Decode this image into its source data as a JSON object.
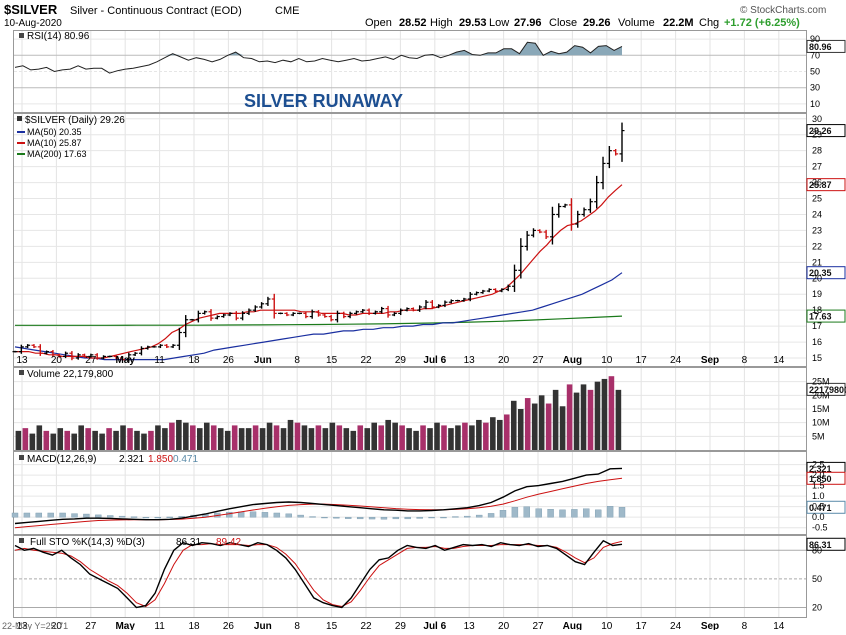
{
  "header": {
    "symbol": "$SILVER",
    "name": "Silver - Continuous Contract (EOD)",
    "exchange": "CME",
    "date": "10-Aug-2020",
    "brand": "© StockCharts.com",
    "quote": {
      "open_label": "Open",
      "open": "28.52",
      "high_label": "High",
      "high": "29.53",
      "low_label": "Low",
      "low": "27.96",
      "close_label": "Close",
      "close": "29.26",
      "volume_label": "Volume",
      "volume": "22.2M",
      "chg_label": "Chg",
      "chg": "+1.72 (+6.25%)",
      "up_color": "#2e9e2e"
    }
  },
  "colors": {
    "candle_up": "#000000",
    "candle_down": "#cc1111",
    "ma50": "#1a2fa0",
    "ma10": "#cc1111",
    "ma200": "#1b7a1b",
    "volume_up": "#333333",
    "volume_down": "#a8306a",
    "macd_line": "#000000",
    "macd_signal": "#cc1111",
    "macd_hist": "#9fb9c9",
    "rsi_fill": "#8aa8b8",
    "sto_k": "#000000",
    "sto_d": "#cc1111",
    "annotation": "#1d4f91"
  },
  "annotation": "SILVER RUNAWAY",
  "chart_data": [
    {
      "type": "line",
      "panel": "rsi",
      "legend": "RSI(14) 80.96",
      "last_value_label": "80.96",
      "y_ticks": [
        90,
        70,
        50,
        30,
        10
      ],
      "ylim": [
        0,
        100
      ],
      "series": [
        {
          "values": [
            55,
            57,
            52,
            53,
            55,
            50,
            52,
            53,
            57,
            53,
            54,
            54,
            48,
            51,
            53,
            54,
            56,
            58,
            62,
            67,
            72,
            68,
            64,
            67,
            65,
            62,
            65,
            70,
            74,
            67,
            66,
            62,
            63,
            61,
            64,
            62,
            66,
            62,
            63,
            66,
            64,
            62,
            64,
            66,
            63,
            64,
            66,
            68,
            65,
            70,
            67,
            66,
            70,
            71,
            67,
            70,
            74,
            76,
            71,
            70,
            73,
            73,
            78,
            78,
            72,
            86,
            85,
            70,
            75,
            72,
            74,
            82,
            80,
            73,
            81,
            82,
            76,
            81
          ]
        }
      ]
    },
    {
      "type": "candlestick",
      "panel": "price",
      "legend": {
        "symbol": "$SILVER (Daily) 29.26",
        "ma50": "MA(50) 20.35",
        "ma10": "MA(10) 25.87",
        "ma200": "MA(200) 17.63"
      },
      "y_ticks": [
        30,
        29,
        28,
        27,
        26,
        25,
        24,
        23,
        22,
        21,
        20,
        19,
        18,
        17,
        16,
        15
      ],
      "ylim": [
        14.5,
        30.3
      ],
      "last_labels": {
        "close": "29.26",
        "ma10": "25.87",
        "ma50": "20.35",
        "ma200": "17.63"
      },
      "x_tick_labels": [
        "13",
        "20",
        "27",
        "May",
        "11",
        "18",
        "26",
        "Jun",
        "8",
        "15",
        "22",
        "29",
        "Jul 6",
        "13",
        "20",
        "27",
        "Aug",
        "10",
        "17",
        "24",
        "Sep",
        "8",
        "14"
      ],
      "close": [
        15.4,
        15.7,
        15.8,
        15.7,
        15.3,
        15.4,
        15.2,
        15.1,
        15.3,
        15.0,
        15.2,
        15.1,
        15.2,
        15.0,
        15.1,
        15.1,
        15.0,
        14.9,
        15.2,
        15.3,
        15.6,
        15.7,
        15.7,
        15.8,
        15.7,
        15.8,
        16.6,
        17.4,
        17.4,
        17.8,
        17.9,
        17.5,
        17.6,
        17.7,
        17.8,
        17.5,
        17.8,
        18.0,
        18.2,
        18.4,
        18.7,
        17.8,
        17.8,
        17.7,
        17.8,
        17.8,
        17.6,
        17.9,
        17.7,
        17.6,
        17.4,
        17.8,
        17.6,
        17.8,
        17.9,
        18.0,
        17.8,
        17.9,
        18.1,
        17.7,
        17.8,
        18.0,
        18.1,
        18.0,
        18.2,
        18.5,
        18.2,
        18.3,
        18.5,
        18.6,
        18.6,
        18.7,
        19.0,
        19.1,
        19.2,
        19.3,
        19.2,
        19.3,
        19.5,
        20.5,
        22.0,
        22.7,
        23.0,
        22.9,
        22.6,
        24.0,
        24.5,
        24.6,
        23.4,
        24.0,
        24.3,
        24.8,
        26.0,
        27.2,
        28.0,
        27.8,
        29.26
      ],
      "ma10": [
        15.4,
        15.4,
        15.4,
        15.3,
        15.3,
        15.2,
        15.2,
        15.1,
        15.1,
        15.1,
        15.1,
        15.0,
        15.0,
        15.0,
        15.1,
        15.2,
        15.3,
        15.4,
        15.5,
        15.6,
        15.7,
        15.9,
        16.2,
        16.6,
        16.8,
        17.1,
        17.3,
        17.5,
        17.6,
        17.7,
        17.8,
        17.8,
        17.8,
        17.8,
        17.9,
        17.9,
        18.0,
        18.0,
        18.0,
        18.0,
        18.0,
        18.0,
        17.9,
        17.9,
        17.9,
        17.8,
        17.8,
        17.8,
        17.8,
        17.7,
        17.7,
        17.8,
        17.8,
        17.8,
        17.8,
        17.9,
        17.9,
        18.0,
        18.0,
        18.0,
        18.1,
        18.1,
        18.2,
        18.3,
        18.4,
        18.5,
        18.6,
        18.7,
        18.8,
        18.9,
        19.0,
        19.2,
        19.4,
        19.8,
        20.2,
        20.7,
        21.2,
        21.7,
        22.1,
        22.6,
        23.0,
        23.3,
        23.4,
        23.6,
        23.9,
        24.2,
        24.6,
        25.1,
        25.5,
        25.87
      ],
      "ma50": [
        15.7,
        15.6,
        15.5,
        15.4,
        15.3,
        15.2,
        15.1,
        15.0,
        15.0,
        14.9,
        14.9,
        14.9,
        14.9,
        14.9,
        14.9,
        14.9,
        15.0,
        15.1,
        15.2,
        15.3,
        15.5,
        15.6,
        15.7,
        15.8,
        15.9,
        16.0,
        16.1,
        16.2,
        16.3,
        16.4,
        16.5,
        16.5,
        16.6,
        16.7,
        16.7,
        16.8,
        16.8,
        16.9,
        16.9,
        17.0,
        17.0,
        17.1,
        17.1,
        17.2,
        17.2,
        17.3,
        17.4,
        17.5,
        17.6,
        17.7,
        17.8,
        17.9,
        18.0,
        18.2,
        18.4,
        18.6,
        18.8,
        19.0,
        19.3,
        19.6,
        19.9,
        20.35
      ],
      "ma200": [
        17.05,
        17.05,
        17.05,
        17.05,
        17.06,
        17.06,
        17.06,
        17.07,
        17.08,
        17.09,
        17.1,
        17.12,
        17.14,
        17.17,
        17.2,
        17.25,
        17.3,
        17.38,
        17.46,
        17.54,
        17.63
      ]
    },
    {
      "type": "bar",
      "panel": "volume",
      "legend": "Volume 22,179,800",
      "last_value_label": "22179800",
      "y_tick_labels": [
        "25M",
        "20M",
        "15M",
        "10M",
        "5M"
      ],
      "ylim": [
        0,
        30000000
      ],
      "values": [
        7,
        8,
        6,
        9,
        7,
        6,
        8,
        7,
        6,
        9,
        8,
        7,
        6,
        8,
        7,
        9,
        8,
        7,
        6,
        7,
        9,
        8,
        10,
        11,
        10,
        9,
        8,
        10,
        9,
        8,
        7,
        9,
        8,
        8,
        9,
        8,
        10,
        9,
        8,
        11,
        10,
        9,
        8,
        9,
        8,
        10,
        9,
        8,
        7,
        9,
        8,
        10,
        9,
        11,
        10,
        9,
        8,
        7,
        9,
        8,
        10,
        9,
        8,
        9,
        10,
        9,
        11,
        10,
        12,
        11,
        13,
        18,
        15,
        19,
        17,
        20,
        17,
        22,
        16,
        24,
        21,
        24,
        22,
        25,
        26,
        27,
        22
      ]
    },
    {
      "type": "line",
      "panel": "macd",
      "legend": {
        "label": "MACD(12,26,9)",
        "macd": "2.321",
        "signal": "1.850",
        "hist": "0.471"
      },
      "y_tick_labels": [
        "2.5",
        "2.0",
        "1.5",
        "1.0",
        "0.5",
        "0.0",
        "-0.5"
      ],
      "ylim": [
        -0.8,
        3.1
      ],
      "last_labels": {
        "macd": "2.321",
        "signal": "1.850",
        "hist": "0.471"
      },
      "macd": [
        -0.3,
        -0.25,
        -0.2,
        -0.15,
        -0.1,
        -0.08,
        -0.05,
        -0.05,
        -0.06,
        -0.08,
        -0.1,
        -0.12,
        -0.12,
        -0.1,
        -0.05,
        0.05,
        0.15,
        0.28,
        0.4,
        0.5,
        0.6,
        0.65,
        0.7,
        0.72,
        0.7,
        0.65,
        0.6,
        0.55,
        0.5,
        0.45,
        0.4,
        0.35,
        0.33,
        0.3,
        0.3,
        0.32,
        0.35,
        0.4,
        0.45,
        0.55,
        0.7,
        0.95,
        1.25,
        1.45,
        1.5,
        1.6,
        1.7,
        1.85,
        2.0,
        2.05,
        2.3,
        2.321
      ],
      "signal": [
        -0.5,
        -0.45,
        -0.4,
        -0.35,
        -0.3,
        -0.25,
        -0.2,
        -0.16,
        -0.14,
        -0.13,
        -0.12,
        -0.12,
        -0.12,
        -0.11,
        -0.09,
        -0.05,
        0.0,
        0.08,
        0.16,
        0.25,
        0.34,
        0.42,
        0.5,
        0.56,
        0.6,
        0.62,
        0.62,
        0.6,
        0.57,
        0.53,
        0.49,
        0.45,
        0.41,
        0.38,
        0.36,
        0.35,
        0.35,
        0.37,
        0.4,
        0.45,
        0.52,
        0.62,
        0.78,
        0.95,
        1.1,
        1.22,
        1.35,
        1.48,
        1.6,
        1.7,
        1.78,
        1.85
      ],
      "hist": [
        0.2,
        0.2,
        0.2,
        0.2,
        0.2,
        0.17,
        0.15,
        0.11,
        0.08,
        0.05,
        0.02,
        0.0,
        0.0,
        0.01,
        0.04,
        0.1,
        0.15,
        0.2,
        0.24,
        0.25,
        0.26,
        0.23,
        0.2,
        0.16,
        0.1,
        0.03,
        -0.02,
        -0.05,
        -0.07,
        -0.08,
        -0.09,
        -0.1,
        -0.08,
        -0.08,
        -0.06,
        -0.03,
        0.0,
        0.03,
        0.05,
        0.1,
        0.18,
        0.33,
        0.47,
        0.5,
        0.4,
        0.38,
        0.35,
        0.37,
        0.4,
        0.35,
        0.52,
        0.471
      ]
    },
    {
      "type": "line",
      "panel": "stochastic",
      "legend": {
        "label": "Full STO %K(14,3) %D(3)",
        "k": "86.31",
        "d": "89.42"
      },
      "y_tick_labels": [
        "80",
        "50",
        "20"
      ],
      "ylim": [
        10,
        95
      ],
      "last_value_label": "86.31",
      "k": [
        85,
        80,
        82,
        78,
        75,
        80,
        72,
        65,
        55,
        50,
        45,
        40,
        30,
        20,
        22,
        35,
        60,
        80,
        88,
        85,
        88,
        87,
        85,
        88,
        86,
        84,
        88,
        86,
        80,
        72,
        60,
        45,
        30,
        25,
        22,
        20,
        30,
        45,
        60,
        70,
        72,
        80,
        85,
        83,
        82,
        85,
        80,
        83,
        86,
        85,
        86,
        84,
        88,
        86,
        85,
        87,
        84,
        85,
        82,
        75,
        68,
        65,
        78,
        90,
        85,
        86.31
      ],
      "d": [
        80,
        82,
        80,
        79,
        78,
        77,
        74,
        68,
        60,
        54,
        48,
        43,
        35,
        25,
        21,
        28,
        45,
        65,
        80,
        86,
        86,
        87,
        86,
        86,
        86,
        85,
        86,
        86,
        83,
        76,
        66,
        52,
        38,
        28,
        23,
        21,
        26,
        38,
        52,
        64,
        70,
        76,
        82,
        83,
        83,
        84,
        82,
        82,
        84,
        85,
        85,
        85,
        86,
        86,
        86,
        86,
        85,
        85,
        83,
        78,
        72,
        67,
        72,
        83,
        87,
        89.42
      ]
    }
  ],
  "footer": {
    "cursor_readout": "22-May Y=25.71"
  }
}
